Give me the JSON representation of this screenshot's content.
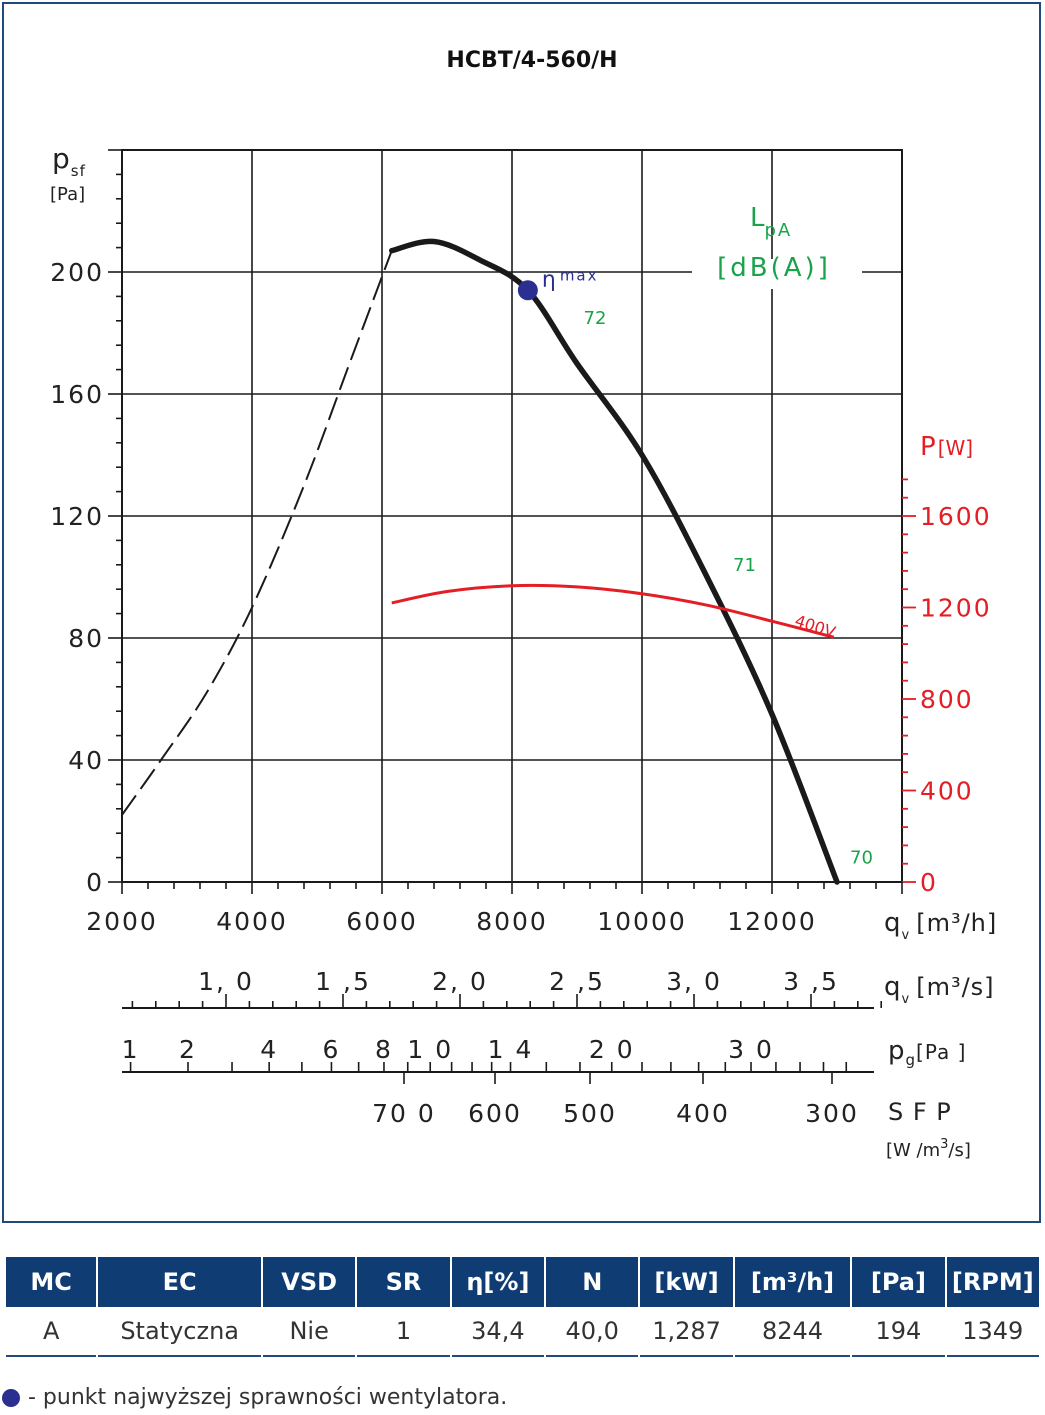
{
  "chart_data": {
    "type": "line",
    "title": "HCBT/4-560/H",
    "y_axis": {
      "label": "p",
      "label_sub": "sf",
      "unit": "[Pa]",
      "ylim": [
        0,
        240
      ],
      "ticks": [
        0,
        40,
        80,
        120,
        160,
        200
      ]
    },
    "x_axis_primary": {
      "label": "q",
      "label_sub": "v",
      "unit": "[m³/h]",
      "xlim": [
        2000,
        14000
      ],
      "ticks": [
        2000,
        4000,
        6000,
        8000,
        10000,
        12000
      ]
    },
    "x_axis_secondary": {
      "label": "q",
      "label_sub": "v",
      "unit": "[m³/s]",
      "ticks": [
        {
          "label": "1, 0",
          "value": 1.0
        },
        {
          "label": "1 ,5",
          "value": 1.5
        },
        {
          "label": "2, 0",
          "value": 2.0
        },
        {
          "label": "2 ,5",
          "value": 2.5
        },
        {
          "label": "3, 0",
          "value": 3.0
        },
        {
          "label": "3 ,5",
          "value": 3.5
        }
      ]
    },
    "pg_axis": {
      "label": "p",
      "label_sub": "g",
      "unit": "[Pa ]",
      "ticks": [
        {
          "label": "1",
          "value": 1
        },
        {
          "label": "2",
          "value": 2
        },
        {
          "label": "4",
          "value": 4
        },
        {
          "label": "6",
          "value": 6
        },
        {
          "label": "8",
          "value": 8
        },
        {
          "label": "1 0",
          "value": 10
        },
        {
          "label": "1 4",
          "value": 14
        },
        {
          "label": "2 0",
          "value": 20
        },
        {
          "label": "3 0",
          "value": 30
        }
      ]
    },
    "sfp_axis": {
      "label": "S F P",
      "unit_main": "[W /m",
      "unit_sup": "3",
      "unit_end": "/s]",
      "ticks": [
        {
          "label": "70 0",
          "value": 700
        },
        {
          "label": "600",
          "value": 600
        },
        {
          "label": "500",
          "value": 500
        },
        {
          "label": "400",
          "value": 400
        },
        {
          "label": "300",
          "value": 300
        }
      ]
    },
    "power_axis": {
      "label": "P",
      "unit": "[W]",
      "ylim": [
        0,
        3200
      ],
      "ticks": [
        0,
        400,
        800,
        1200,
        1600
      ]
    },
    "lpa_label": {
      "name": "L",
      "sub": "pA",
      "unit": "[dB(A)]"
    },
    "series": [
      {
        "role": "pressure-unstable",
        "style": "dashed",
        "x": [
          2000,
          2600,
          3300,
          4000,
          4800,
          5500,
          6150
        ],
        "y": [
          22,
          40,
          62,
          90,
          130,
          170,
          207
        ]
      },
      {
        "role": "pressure-curve",
        "style": "solid",
        "x": [
          6150,
          6800,
          7500,
          8244,
          9000,
          10000,
          11000,
          12000,
          13000
        ],
        "y": [
          207,
          210,
          204,
          194,
          170,
          140,
          100,
          55,
          0
        ]
      },
      {
        "name": "400V",
        "role": "power",
        "style": "solid",
        "x": [
          6150,
          7000,
          8000,
          9000,
          10000,
          11000,
          12000,
          12950
        ],
        "y": [
          1220,
          1270,
          1295,
          1290,
          1260,
          1210,
          1140,
          1070
        ]
      }
    ],
    "annotations": [
      {
        "text": "72",
        "x": 9100,
        "y": 183
      },
      {
        "text": "71",
        "x": 11400,
        "y": 102
      },
      {
        "text": "70",
        "x": 13200,
        "y": 6
      }
    ],
    "eta_max": {
      "symbol": "η",
      "label": "max",
      "x": 8244,
      "y": 194
    },
    "colors": {
      "pressure": "#1a1a1a",
      "power": "#e31e25",
      "noise": "#1aa34a",
      "eta": "#2b2f8f",
      "grid": "#1a1a1a"
    }
  },
  "table": {
    "headers": [
      "MC",
      "EC",
      "VSD",
      "SR",
      "η[%]",
      "N",
      "[kW]",
      "[m³/h]",
      "[Pa]",
      "[RPM]"
    ],
    "rows": [
      [
        "A",
        "Statyczna",
        "Nie",
        "1",
        "34,4",
        "40,0",
        "1,287",
        "8244",
        "194",
        "1349"
      ]
    ]
  },
  "footnote": "- punkt najwyższej sprawności wentylatora."
}
